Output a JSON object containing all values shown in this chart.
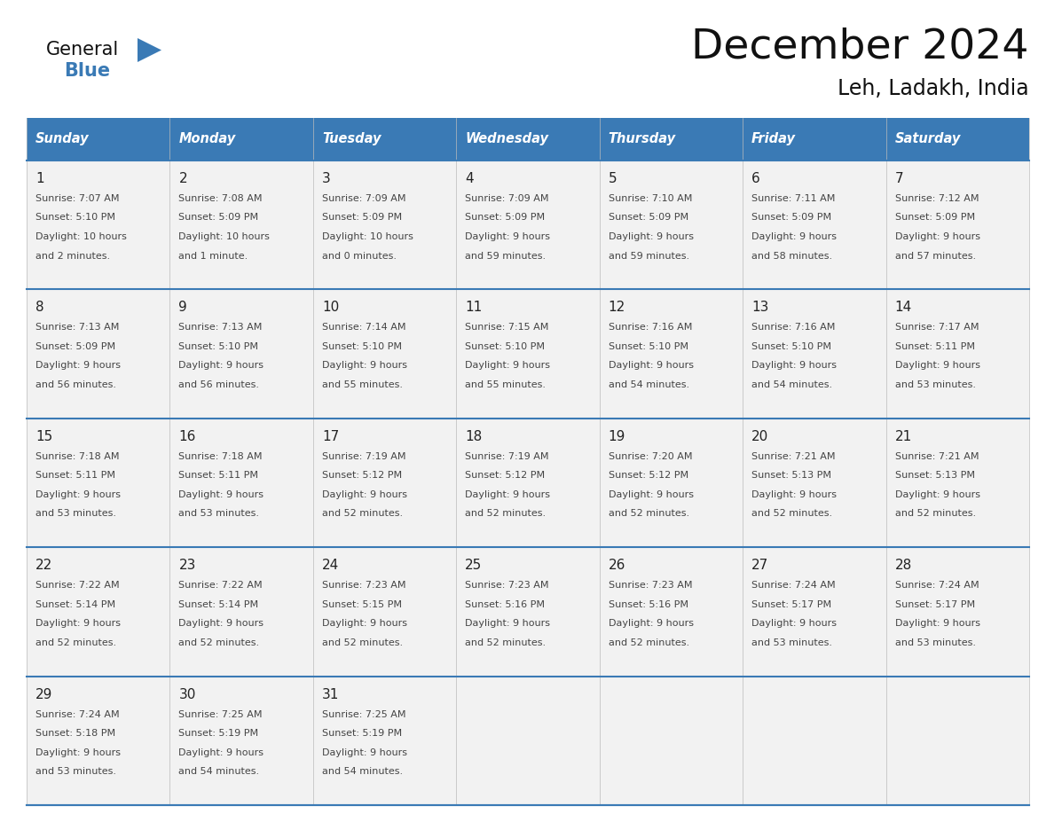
{
  "title": "December 2024",
  "subtitle": "Leh, Ladakh, India",
  "header_color": "#3a7ab5",
  "header_text_color": "#ffffff",
  "day_names": [
    "Sunday",
    "Monday",
    "Tuesday",
    "Wednesday",
    "Thursday",
    "Friday",
    "Saturday"
  ],
  "background_color": "#ffffff",
  "cell_bg_color": "#f2f2f2",
  "grid_line_color": "#3a7ab5",
  "text_color": "#444444",
  "title_color": "#111111",
  "logo_general_color": "#111111",
  "logo_blue_color": "#3a7ab5",
  "logo_triangle_color": "#3a7ab5",
  "calendar_data": [
    [
      {
        "day": 1,
        "sunrise": "7:07 AM",
        "sunset": "5:10 PM",
        "daylight_h": "10 hours",
        "daylight_m": "and 2 minutes."
      },
      {
        "day": 2,
        "sunrise": "7:08 AM",
        "sunset": "5:09 PM",
        "daylight_h": "10 hours",
        "daylight_m": "and 1 minute."
      },
      {
        "day": 3,
        "sunrise": "7:09 AM",
        "sunset": "5:09 PM",
        "daylight_h": "10 hours",
        "daylight_m": "and 0 minutes."
      },
      {
        "day": 4,
        "sunrise": "7:09 AM",
        "sunset": "5:09 PM",
        "daylight_h": "9 hours",
        "daylight_m": "and 59 minutes."
      },
      {
        "day": 5,
        "sunrise": "7:10 AM",
        "sunset": "5:09 PM",
        "daylight_h": "9 hours",
        "daylight_m": "and 59 minutes."
      },
      {
        "day": 6,
        "sunrise": "7:11 AM",
        "sunset": "5:09 PM",
        "daylight_h": "9 hours",
        "daylight_m": "and 58 minutes."
      },
      {
        "day": 7,
        "sunrise": "7:12 AM",
        "sunset": "5:09 PM",
        "daylight_h": "9 hours",
        "daylight_m": "and 57 minutes."
      }
    ],
    [
      {
        "day": 8,
        "sunrise": "7:13 AM",
        "sunset": "5:09 PM",
        "daylight_h": "9 hours",
        "daylight_m": "and 56 minutes."
      },
      {
        "day": 9,
        "sunrise": "7:13 AM",
        "sunset": "5:10 PM",
        "daylight_h": "9 hours",
        "daylight_m": "and 56 minutes."
      },
      {
        "day": 10,
        "sunrise": "7:14 AM",
        "sunset": "5:10 PM",
        "daylight_h": "9 hours",
        "daylight_m": "and 55 minutes."
      },
      {
        "day": 11,
        "sunrise": "7:15 AM",
        "sunset": "5:10 PM",
        "daylight_h": "9 hours",
        "daylight_m": "and 55 minutes."
      },
      {
        "day": 12,
        "sunrise": "7:16 AM",
        "sunset": "5:10 PM",
        "daylight_h": "9 hours",
        "daylight_m": "and 54 minutes."
      },
      {
        "day": 13,
        "sunrise": "7:16 AM",
        "sunset": "5:10 PM",
        "daylight_h": "9 hours",
        "daylight_m": "and 54 minutes."
      },
      {
        "day": 14,
        "sunrise": "7:17 AM",
        "sunset": "5:11 PM",
        "daylight_h": "9 hours",
        "daylight_m": "and 53 minutes."
      }
    ],
    [
      {
        "day": 15,
        "sunrise": "7:18 AM",
        "sunset": "5:11 PM",
        "daylight_h": "9 hours",
        "daylight_m": "and 53 minutes."
      },
      {
        "day": 16,
        "sunrise": "7:18 AM",
        "sunset": "5:11 PM",
        "daylight_h": "9 hours",
        "daylight_m": "and 53 minutes."
      },
      {
        "day": 17,
        "sunrise": "7:19 AM",
        "sunset": "5:12 PM",
        "daylight_h": "9 hours",
        "daylight_m": "and 52 minutes."
      },
      {
        "day": 18,
        "sunrise": "7:19 AM",
        "sunset": "5:12 PM",
        "daylight_h": "9 hours",
        "daylight_m": "and 52 minutes."
      },
      {
        "day": 19,
        "sunrise": "7:20 AM",
        "sunset": "5:12 PM",
        "daylight_h": "9 hours",
        "daylight_m": "and 52 minutes."
      },
      {
        "day": 20,
        "sunrise": "7:21 AM",
        "sunset": "5:13 PM",
        "daylight_h": "9 hours",
        "daylight_m": "and 52 minutes."
      },
      {
        "day": 21,
        "sunrise": "7:21 AM",
        "sunset": "5:13 PM",
        "daylight_h": "9 hours",
        "daylight_m": "and 52 minutes."
      }
    ],
    [
      {
        "day": 22,
        "sunrise": "7:22 AM",
        "sunset": "5:14 PM",
        "daylight_h": "9 hours",
        "daylight_m": "and 52 minutes."
      },
      {
        "day": 23,
        "sunrise": "7:22 AM",
        "sunset": "5:14 PM",
        "daylight_h": "9 hours",
        "daylight_m": "and 52 minutes."
      },
      {
        "day": 24,
        "sunrise": "7:23 AM",
        "sunset": "5:15 PM",
        "daylight_h": "9 hours",
        "daylight_m": "and 52 minutes."
      },
      {
        "day": 25,
        "sunrise": "7:23 AM",
        "sunset": "5:16 PM",
        "daylight_h": "9 hours",
        "daylight_m": "and 52 minutes."
      },
      {
        "day": 26,
        "sunrise": "7:23 AM",
        "sunset": "5:16 PM",
        "daylight_h": "9 hours",
        "daylight_m": "and 52 minutes."
      },
      {
        "day": 27,
        "sunrise": "7:24 AM",
        "sunset": "5:17 PM",
        "daylight_h": "9 hours",
        "daylight_m": "and 53 minutes."
      },
      {
        "day": 28,
        "sunrise": "7:24 AM",
        "sunset": "5:17 PM",
        "daylight_h": "9 hours",
        "daylight_m": "and 53 minutes."
      }
    ],
    [
      {
        "day": 29,
        "sunrise": "7:24 AM",
        "sunset": "5:18 PM",
        "daylight_h": "9 hours",
        "daylight_m": "and 53 minutes."
      },
      {
        "day": 30,
        "sunrise": "7:25 AM",
        "sunset": "5:19 PM",
        "daylight_h": "9 hours",
        "daylight_m": "and 54 minutes."
      },
      {
        "day": 31,
        "sunrise": "7:25 AM",
        "sunset": "5:19 PM",
        "daylight_h": "9 hours",
        "daylight_m": "and 54 minutes."
      },
      null,
      null,
      null,
      null
    ]
  ]
}
